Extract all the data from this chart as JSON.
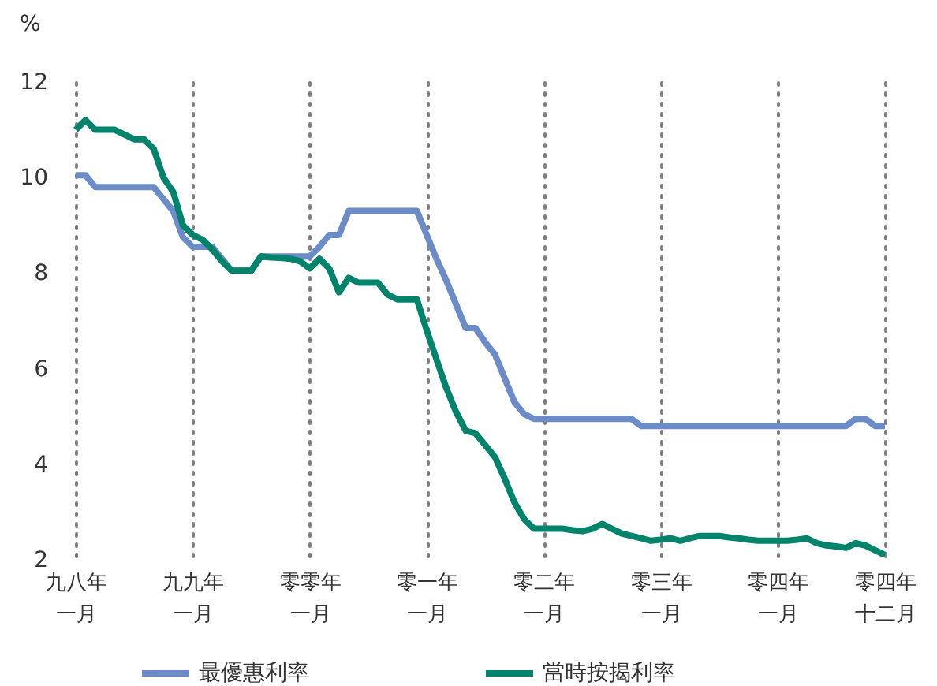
{
  "chart_data": {
    "type": "line",
    "ylabel": "%",
    "categories": [
      "九八年一月",
      null,
      null,
      null,
      null,
      null,
      null,
      null,
      null,
      null,
      null,
      null,
      "九九年一月",
      null,
      null,
      null,
      null,
      null,
      null,
      null,
      null,
      null,
      null,
      null,
      "零零年一月",
      null,
      null,
      null,
      null,
      null,
      null,
      null,
      null,
      null,
      null,
      null,
      "零一年一月",
      null,
      null,
      null,
      null,
      null,
      null,
      null,
      null,
      null,
      null,
      null,
      "零二年一月",
      null,
      null,
      null,
      null,
      null,
      null,
      null,
      null,
      null,
      null,
      null,
      "零三年一月",
      null,
      null,
      null,
      null,
      null,
      null,
      null,
      null,
      null,
      null,
      null,
      "零四年一月",
      null,
      null,
      null,
      null,
      null,
      null,
      null,
      null,
      null,
      null,
      "零四年十二月"
    ],
    "ylim": [
      2,
      12
    ],
    "yticks": [
      2,
      4,
      6,
      8,
      10,
      12
    ],
    "grid": "x",
    "legend": "bottom",
    "series": [
      {
        "name": "最優惠利率",
        "color": "#6b8cc7",
        "values": [
          10.05,
          10.05,
          9.8,
          9.8,
          9.8,
          9.8,
          9.8,
          9.8,
          9.8,
          9.55,
          9.3,
          8.75,
          8.55,
          8.55,
          8.55,
          8.3,
          8.05,
          8.05,
          8.05,
          8.35,
          8.35,
          8.35,
          8.35,
          8.35,
          8.35,
          8.55,
          8.8,
          8.8,
          9.3,
          9.3,
          9.3,
          9.3,
          9.3,
          9.3,
          9.3,
          9.3,
          8.8,
          8.3,
          7.85,
          7.35,
          6.85,
          6.85,
          6.55,
          6.3,
          5.8,
          5.3,
          5.05,
          4.95,
          4.95,
          4.95,
          4.95,
          4.95,
          4.95,
          4.95,
          4.95,
          4.95,
          4.95,
          4.95,
          4.8,
          4.8,
          4.8,
          4.8,
          4.8,
          4.8,
          4.8,
          4.8,
          4.8,
          4.8,
          4.8,
          4.8,
          4.8,
          4.8,
          4.8,
          4.8,
          4.8,
          4.8,
          4.8,
          4.8,
          4.8,
          4.8,
          4.95,
          4.95,
          4.8,
          4.8
        ]
      },
      {
        "name": "當時按揭利率",
        "color": "#00836b",
        "values": [
          11.0,
          11.2,
          11.0,
          11.0,
          11.0,
          10.9,
          10.8,
          10.8,
          10.6,
          10.0,
          9.7,
          9.0,
          8.8,
          8.7,
          8.5,
          8.25,
          8.05,
          8.05,
          8.05,
          8.35,
          8.33,
          8.32,
          8.3,
          8.25,
          8.1,
          8.3,
          8.1,
          7.6,
          7.9,
          7.8,
          7.8,
          7.8,
          7.55,
          7.45,
          7.45,
          7.45,
          6.8,
          6.2,
          5.6,
          5.1,
          4.7,
          4.65,
          4.4,
          4.15,
          3.7,
          3.2,
          2.85,
          2.65,
          2.65,
          2.65,
          2.65,
          2.62,
          2.6,
          2.65,
          2.75,
          2.65,
          2.55,
          2.5,
          2.45,
          2.4,
          2.42,
          2.45,
          2.4,
          2.45,
          2.5,
          2.5,
          2.5,
          2.47,
          2.45,
          2.42,
          2.4,
          2.4,
          2.4,
          2.4,
          2.42,
          2.45,
          2.35,
          2.3,
          2.28,
          2.25,
          2.35,
          2.3,
          2.2,
          2.1
        ]
      }
    ]
  }
}
